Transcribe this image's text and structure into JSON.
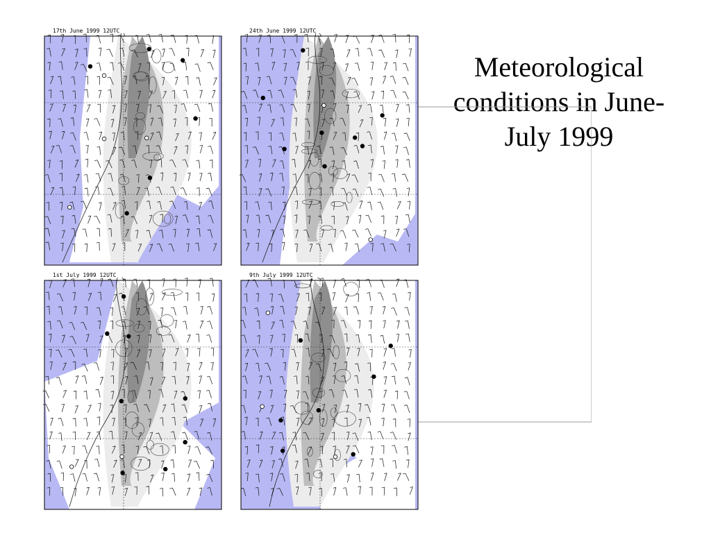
{
  "slide": {
    "title": "Meteorological conditions in June-July 1999"
  },
  "panels": [
    {
      "label": "17th June 1999 12UTC"
    },
    {
      "label": "24th June 1999 12UTC"
    },
    {
      "label": "1st July 1999 12UTC"
    },
    {
      "label": "9th July 1999 12UTC"
    }
  ],
  "colors": {
    "sea": "#b8b8f4",
    "land": "#ffffff",
    "terrain_low": "#ececec",
    "terrain_mid": "#bdbdbd",
    "terrain_high": "#8e8e8e",
    "connector": "#9a9a9a"
  }
}
